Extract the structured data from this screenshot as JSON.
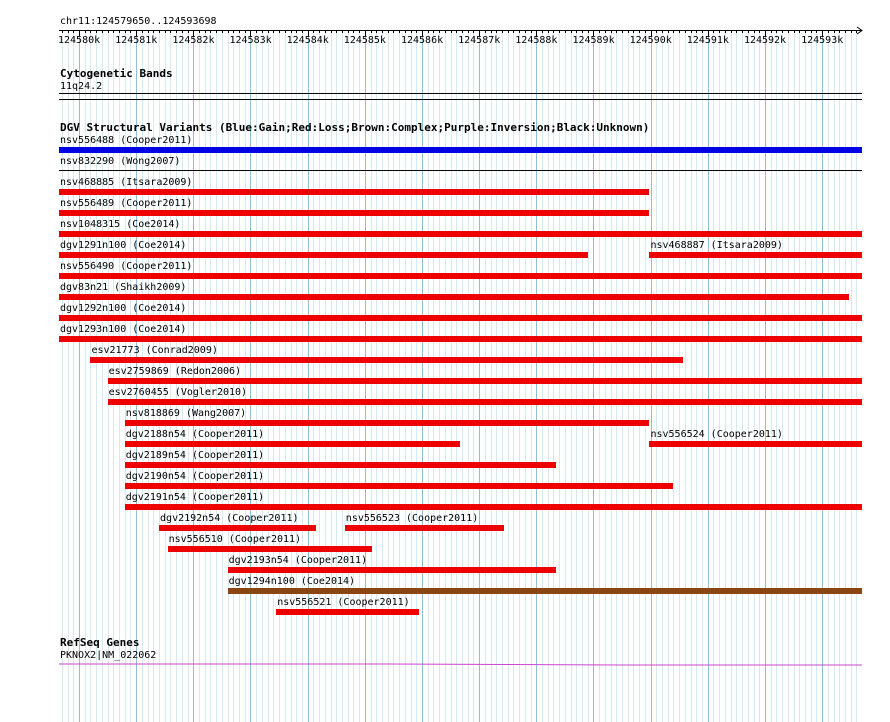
{
  "location": "chr11:124579650..124593698",
  "ruler": {
    "ticks": [
      "124580k",
      "124581k",
      "124582k",
      "124583k",
      "124584k",
      "124585k",
      "124586k",
      "124587k",
      "124588k",
      "124589k",
      "124590k",
      "124591k",
      "124592k",
      "124593k"
    ]
  },
  "tracks": {
    "cytoband": {
      "title": "Cytogenetic Bands",
      "band": "11q24.2"
    },
    "dgv": {
      "title": "DGV Structural Variants (Blue:Gain;Red:Loss;Brown:Complex;Purple:Inversion;Black:Unknown)",
      "colors": {
        "gain": "#0000e6",
        "loss": "#ee0000",
        "complex": "#8b4513",
        "inversion": "#800080",
        "unknown": "#000000"
      },
      "features": [
        {
          "label": "nsv556488 (Cooper2011)",
          "type": "gain",
          "start": 124579650,
          "end": 124593698
        },
        {
          "label": "nsv832290 (Wong2007)",
          "type": "unknown",
          "start": 124579650,
          "end": 124593698
        },
        {
          "label": "nsv468885 (Itsara2009)",
          "type": "loss",
          "start": 124579650,
          "end": 124589970
        },
        {
          "label": "nsv556489 (Cooper2011)",
          "type": "loss",
          "start": 124579650,
          "end": 124589970
        },
        {
          "label": "nsv1048315 (Coe2014)",
          "type": "loss",
          "start": 124579650,
          "end": 124593698
        },
        {
          "label": "dgv1291n100 (Coe2014)",
          "type": "loss",
          "start": 124579650,
          "end": 124588910
        },
        {
          "label": "nsv468887 (Itsara2009)",
          "type": "loss",
          "start": 124589980,
          "end": 124593698
        },
        {
          "label": "nsv556490 (Cooper2011)",
          "type": "loss",
          "start": 124579650,
          "end": 124593698
        },
        {
          "label": "dgv83n21 (Shaikh2009)",
          "type": "loss",
          "start": 124579650,
          "end": 124593470
        },
        {
          "label": "dgv1292n100 (Coe2014)",
          "type": "loss",
          "start": 124579650,
          "end": 124593698
        },
        {
          "label": "dgv1293n100 (Coe2014)",
          "type": "loss",
          "start": 124579650,
          "end": 124593698
        },
        {
          "label": "esv21773 (Conrad2009)",
          "type": "loss",
          "start": 124580200,
          "end": 124590570
        },
        {
          "label": "esv2759869 (Redon2006)",
          "type": "loss",
          "start": 124580500,
          "end": 124593698
        },
        {
          "label": "esv2760455 (Vogler2010)",
          "type": "loss",
          "start": 124580500,
          "end": 124593698
        },
        {
          "label": "nsv818869 (Wang2007)",
          "type": "loss",
          "start": 124580800,
          "end": 124589970
        },
        {
          "label": "dgv2188n54 (Cooper2011)",
          "type": "loss",
          "start": 124580800,
          "end": 124586670
        },
        {
          "label": "nsv556524 (Cooper2011)",
          "type": "loss",
          "start": 124589980,
          "end": 124593698
        },
        {
          "label": "dgv2189n54 (Cooper2011)",
          "type": "loss",
          "start": 124580800,
          "end": 124588340
        },
        {
          "label": "dgv2190n54 (Cooper2011)",
          "type": "loss",
          "start": 124580800,
          "end": 124590400
        },
        {
          "label": "dgv2191n54 (Cooper2011)",
          "type": "loss",
          "start": 124580800,
          "end": 124593698
        },
        {
          "label": "dgv2192n54 (Cooper2011)",
          "type": "loss",
          "start": 124581400,
          "end": 124584150
        },
        {
          "label": "nsv556523 (Cooper2011)",
          "type": "loss",
          "start": 124584650,
          "end": 124587440
        },
        {
          "label": "nsv556510 (Cooper2011)",
          "type": "loss",
          "start": 124581550,
          "end": 124585130
        },
        {
          "label": "dgv2193n54 (Cooper2011)",
          "type": "loss",
          "start": 124582600,
          "end": 124588340
        },
        {
          "label": "dgv1294n100 (Coe2014)",
          "type": "complex",
          "start": 124582600,
          "end": 124593698
        },
        {
          "label": "nsv556521 (Cooper2011)",
          "type": "loss",
          "start": 124583450,
          "end": 124585950
        }
      ]
    },
    "refseq": {
      "title": "RefSeq Genes",
      "gene": "PKNOX2|NM_022062"
    }
  }
}
